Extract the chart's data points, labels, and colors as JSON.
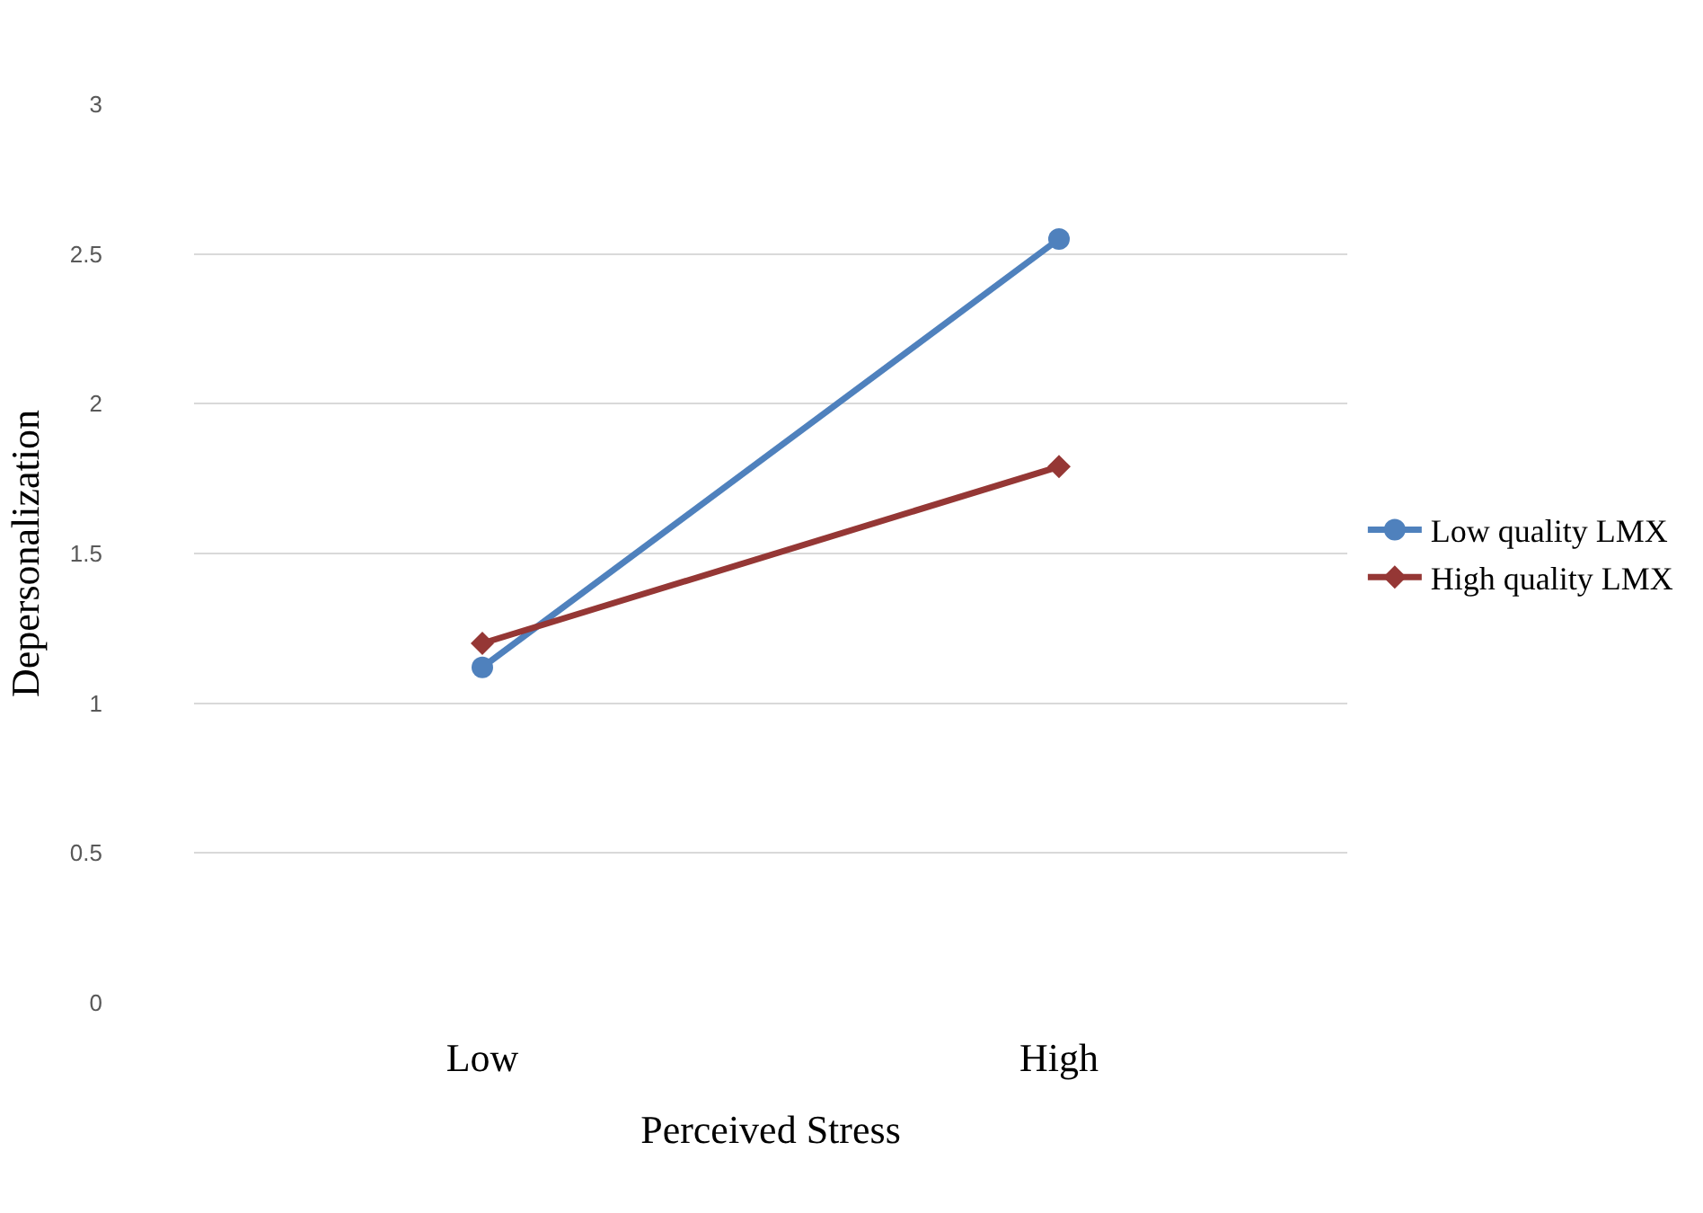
{
  "chart_data": {
    "type": "line",
    "xlabel": "Perceived Stress",
    "ylabel": "Depersonalization",
    "categories": [
      "Low",
      "High"
    ],
    "series": [
      {
        "name": "Low quality LMX",
        "color": "#4f81bd",
        "marker": "circle",
        "values": [
          1.12,
          2.55
        ]
      },
      {
        "name": "High quality LMX",
        "color": "#953735",
        "marker": "diamond",
        "values": [
          1.2,
          1.79
        ]
      }
    ],
    "ylim": [
      0,
      3
    ],
    "yticks": [
      0,
      0.5,
      1,
      1.5,
      2,
      2.5,
      3
    ],
    "grid": "y",
    "legend": "right",
    "line_style": "solid"
  }
}
